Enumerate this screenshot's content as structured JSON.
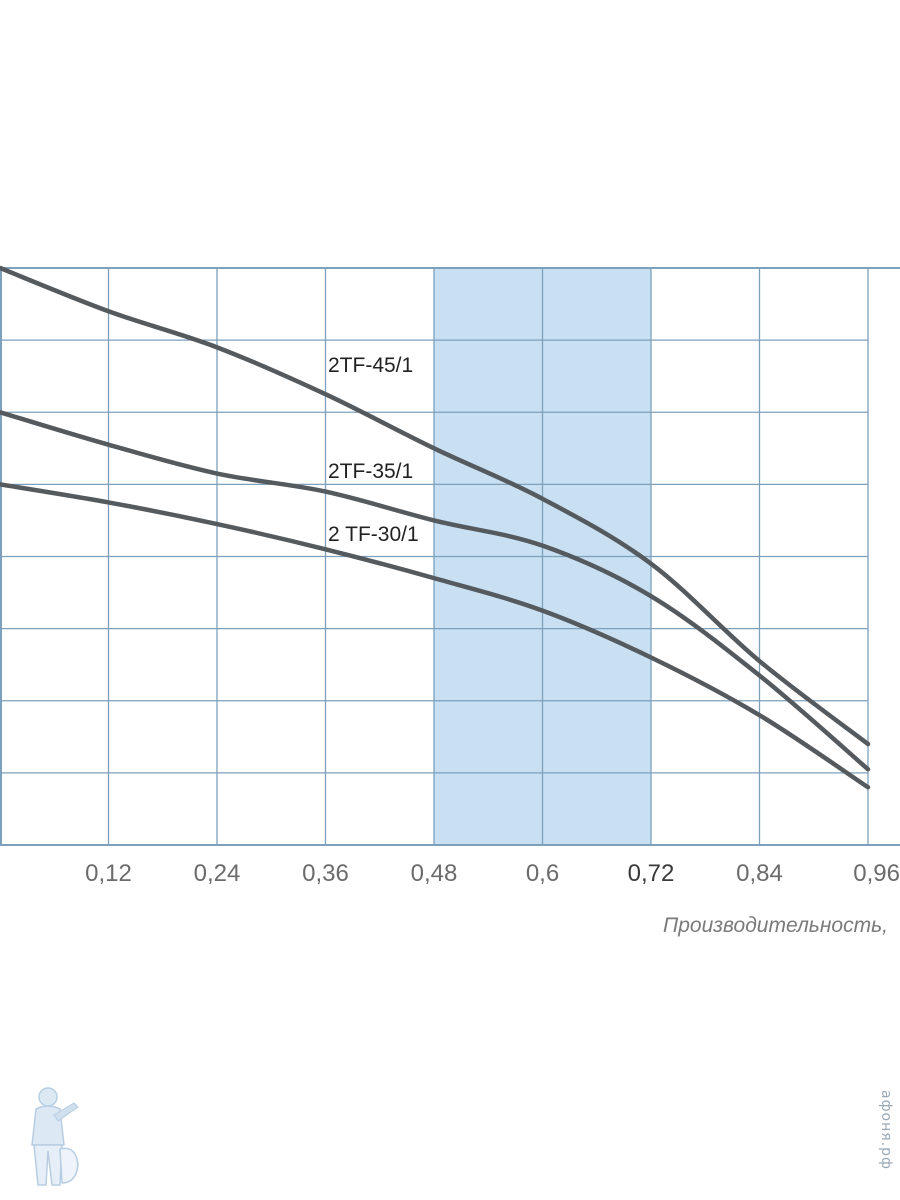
{
  "chart_data": {
    "type": "line",
    "xlabel": "Производительность,",
    "ylabel": "",
    "xlim": [
      0,
      0.96
    ],
    "ylim": [
      0,
      8
    ],
    "grid": true,
    "x_ticks": [
      "0,12",
      "0,24",
      "0,36",
      "0,48",
      "0,6",
      "0,72",
      "0,84",
      "0,96"
    ],
    "highlight_band": {
      "x_from": 0.48,
      "x_to": 0.72,
      "color": "#c8e0f2"
    },
    "series": [
      {
        "name": "2TF-45/1",
        "color": "#555a5f",
        "x": [
          0.0,
          0.12,
          0.24,
          0.36,
          0.48,
          0.6,
          0.72,
          0.84,
          0.96
        ],
        "y": [
          8.0,
          7.4,
          6.9,
          6.25,
          5.5,
          4.8,
          3.9,
          2.55,
          1.4
        ]
      },
      {
        "name": "2TF-35/1",
        "color": "#555a5f",
        "x": [
          0.0,
          0.12,
          0.24,
          0.36,
          0.48,
          0.6,
          0.72,
          0.84,
          0.96
        ],
        "y": [
          6.0,
          5.55,
          5.15,
          4.9,
          4.5,
          4.15,
          3.45,
          2.35,
          1.05
        ]
      },
      {
        "name": "2 TF-30/1",
        "color": "#555a5f",
        "x": [
          0.0,
          0.12,
          0.24,
          0.36,
          0.48,
          0.6,
          0.72,
          0.84,
          0.96
        ],
        "y": [
          5.0,
          4.75,
          4.45,
          4.1,
          3.7,
          3.25,
          2.6,
          1.8,
          0.8
        ]
      }
    ]
  },
  "watermark": {
    "text": "афоня.рф",
    "logo_icon": "plumber-mascot-icon"
  }
}
